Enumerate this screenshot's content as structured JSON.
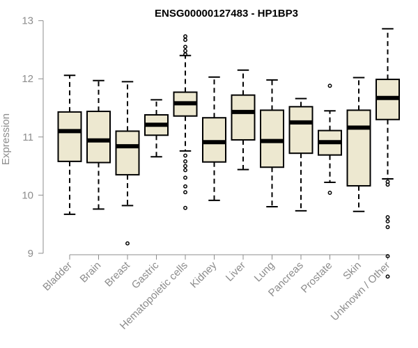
{
  "chart_data": {
    "type": "boxplot",
    "title": "ENSG00000127483 - HP1BP3",
    "ylabel": "Expression",
    "xlabel": "",
    "ylim": [
      8.55,
      13.05
    ],
    "yticks": [
      9,
      10,
      11,
      12,
      13
    ],
    "box_fill": "#ede8d0",
    "line_color": "#000000",
    "axis_color": "#8c8c8c",
    "categories": [
      "Bladder",
      "Brain",
      "Breast",
      "Gastric",
      "Hematopoietic cells",
      "Kidney",
      "Liver",
      "Lung",
      "Pancreas",
      "Prostate",
      "Skin",
      "Unknown / Other"
    ],
    "series": [
      {
        "whisker_low": 9.67,
        "q1": 10.58,
        "median": 11.1,
        "q3": 11.43,
        "whisker_high": 12.06,
        "outliers": []
      },
      {
        "whisker_low": 9.76,
        "q1": 10.56,
        "median": 10.94,
        "q3": 11.44,
        "whisker_high": 11.97,
        "outliers": []
      },
      {
        "whisker_low": 9.82,
        "q1": 10.35,
        "median": 10.84,
        "q3": 11.1,
        "whisker_high": 11.95,
        "outliers": [
          9.17
        ]
      },
      {
        "whisker_low": 10.66,
        "q1": 11.03,
        "median": 11.21,
        "q3": 11.38,
        "whisker_high": 11.64,
        "outliers": []
      },
      {
        "whisker_low": 10.76,
        "q1": 11.36,
        "median": 11.58,
        "q3": 11.77,
        "whisker_high": 12.4,
        "outliers": [
          12.73,
          12.67,
          12.55,
          12.48,
          12.42,
          10.68,
          10.58,
          10.5,
          10.43,
          10.3,
          10.15,
          10.05,
          9.78
        ]
      },
      {
        "whisker_low": 9.91,
        "q1": 10.57,
        "median": 10.91,
        "q3": 11.33,
        "whisker_high": 12.03,
        "outliers": []
      },
      {
        "whisker_low": 10.44,
        "q1": 10.95,
        "median": 11.43,
        "q3": 11.72,
        "whisker_high": 12.15,
        "outliers": []
      },
      {
        "whisker_low": 9.8,
        "q1": 10.48,
        "median": 10.93,
        "q3": 11.46,
        "whisker_high": 11.98,
        "outliers": []
      },
      {
        "whisker_low": 9.73,
        "q1": 10.72,
        "median": 11.25,
        "q3": 11.52,
        "whisker_high": 11.66,
        "outliers": []
      },
      {
        "whisker_low": 10.22,
        "q1": 10.69,
        "median": 10.91,
        "q3": 11.11,
        "whisker_high": 11.45,
        "outliers": [
          11.88,
          10.04
        ]
      },
      {
        "whisker_low": 9.72,
        "q1": 10.16,
        "median": 11.16,
        "q3": 11.46,
        "whisker_high": 12.02,
        "outliers": []
      },
      {
        "whisker_low": 10.28,
        "q1": 11.3,
        "median": 11.67,
        "q3": 11.99,
        "whisker_high": 12.86,
        "outliers": [
          10.23,
          10.18,
          9.62,
          9.55,
          9.45,
          8.95,
          8.6
        ]
      }
    ]
  }
}
